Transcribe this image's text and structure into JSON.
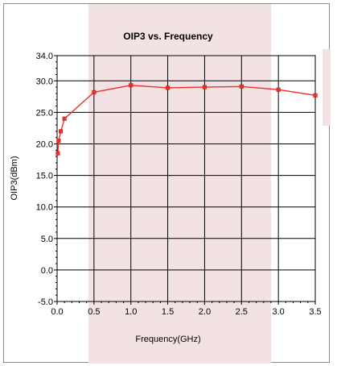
{
  "chart_data": {
    "type": "line",
    "title": "OIP3 vs. Frequency",
    "xlabel": "Frequency(GHz)",
    "ylabel": "OIP3(dBm)",
    "xlim": [
      0.0,
      3.5
    ],
    "ylim": [
      -5.0,
      34.0
    ],
    "xticks": [
      "0.0",
      "0.5",
      "1.0",
      "1.5",
      "2.0",
      "2.5",
      "3.0",
      "3.5"
    ],
    "yticks": [
      "34.0",
      "30.0",
      "25.0",
      "20.0",
      "15.0",
      "10.0",
      "5.0",
      "0.0",
      "-5.0"
    ],
    "ytick_values": [
      34,
      30,
      25,
      20,
      15,
      10,
      5,
      0,
      -5
    ],
    "xtick_values": [
      0,
      0.5,
      1.0,
      1.5,
      2.0,
      2.5,
      3.0,
      3.5
    ],
    "grid": true,
    "series": [
      {
        "color": "#e8332c",
        "x": [
          0.01,
          0.02,
          0.05,
          0.1,
          0.5,
          1.0,
          1.5,
          2.0,
          2.5,
          3.0,
          3.5
        ],
        "y": [
          18.5,
          20.5,
          22.0,
          24.0,
          28.2,
          29.3,
          28.9,
          29.0,
          29.1,
          28.6,
          27.7
        ]
      }
    ]
  }
}
